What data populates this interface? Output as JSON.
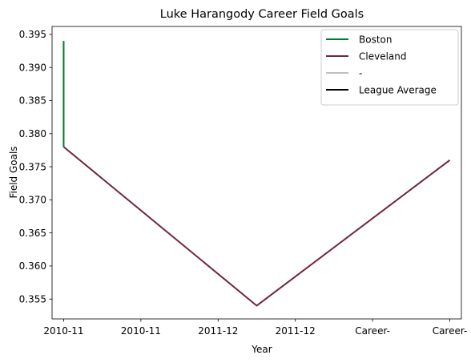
{
  "chart_data": {
    "type": "line",
    "title": "Luke Harangody Career Field Goals",
    "xlabel": "Year",
    "ylabel": "Field Goals",
    "x_tick_labels": [
      "2010-11",
      "2010-11",
      "2011-12",
      "2011-12",
      "Career-",
      "Career-"
    ],
    "x_range": [
      -0.15,
      5.15
    ],
    "y_ticks": [
      0.355,
      0.36,
      0.365,
      0.37,
      0.375,
      0.38,
      0.385,
      0.39,
      0.395
    ],
    "y_tick_labels": [
      "0.355",
      "0.360",
      "0.365",
      "0.370",
      "0.375",
      "0.380",
      "0.385",
      "0.390",
      "0.395"
    ],
    "ylim": [
      0.352,
      0.3962
    ],
    "grid": false,
    "legend_position": "top-right",
    "series": [
      {
        "name": "Boston",
        "color": "#007A33",
        "points": [
          [
            0,
            0.394
          ],
          [
            0,
            0.378
          ]
        ]
      },
      {
        "name": "Cleveland",
        "color": "#6F263D",
        "points": [
          [
            0,
            0.378
          ],
          [
            2.5,
            0.354
          ],
          [
            5,
            0.376
          ]
        ]
      },
      {
        "name": "-",
        "color": "#BEBEBE",
        "points": []
      },
      {
        "name": "League Average",
        "color": "#000000",
        "points": []
      }
    ]
  }
}
